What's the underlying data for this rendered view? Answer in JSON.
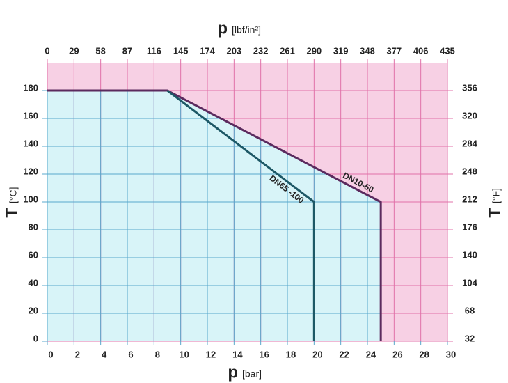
{
  "chart_data": {
    "type": "line",
    "x_symbol": "p",
    "x_unit": "[bar]",
    "x2_symbol": "p",
    "x2_unit": "[lbf/in²]",
    "y_symbol": "T",
    "y_unit": "[°C]",
    "y2_symbol": "T",
    "y2_unit": "[°F]",
    "xlim": [
      0,
      30
    ],
    "xticks": [
      0,
      2,
      4,
      6,
      8,
      10,
      12,
      14,
      16,
      18,
      20,
      22,
      24,
      26,
      28,
      30
    ],
    "x2lim": [
      0,
      435
    ],
    "x2ticks": [
      0,
      29,
      58,
      87,
      116,
      145,
      174,
      203,
      232,
      261,
      290,
      319,
      348,
      377,
      406,
      435
    ],
    "ylim": [
      0,
      200
    ],
    "yticks": [
      0,
      20,
      40,
      60,
      80,
      100,
      120,
      140,
      160,
      180
    ],
    "y2lim": [
      32,
      392
    ],
    "y2ticks": [
      32,
      68,
      104,
      140,
      176,
      212,
      248,
      284,
      320,
      356
    ],
    "grid": true,
    "background_color": "#f7d0e4",
    "area_color": "#d8f4f8",
    "series": [
      {
        "name": "DN10-50",
        "color": "#5b2a5e",
        "x": [
          0,
          9,
          25,
          25
        ],
        "values": [
          180,
          180,
          100,
          0
        ]
      },
      {
        "name": "DN65 -100",
        "color": "#1d5866",
        "x": [
          9,
          20,
          20
        ],
        "values": [
          180,
          100,
          0
        ]
      }
    ]
  }
}
